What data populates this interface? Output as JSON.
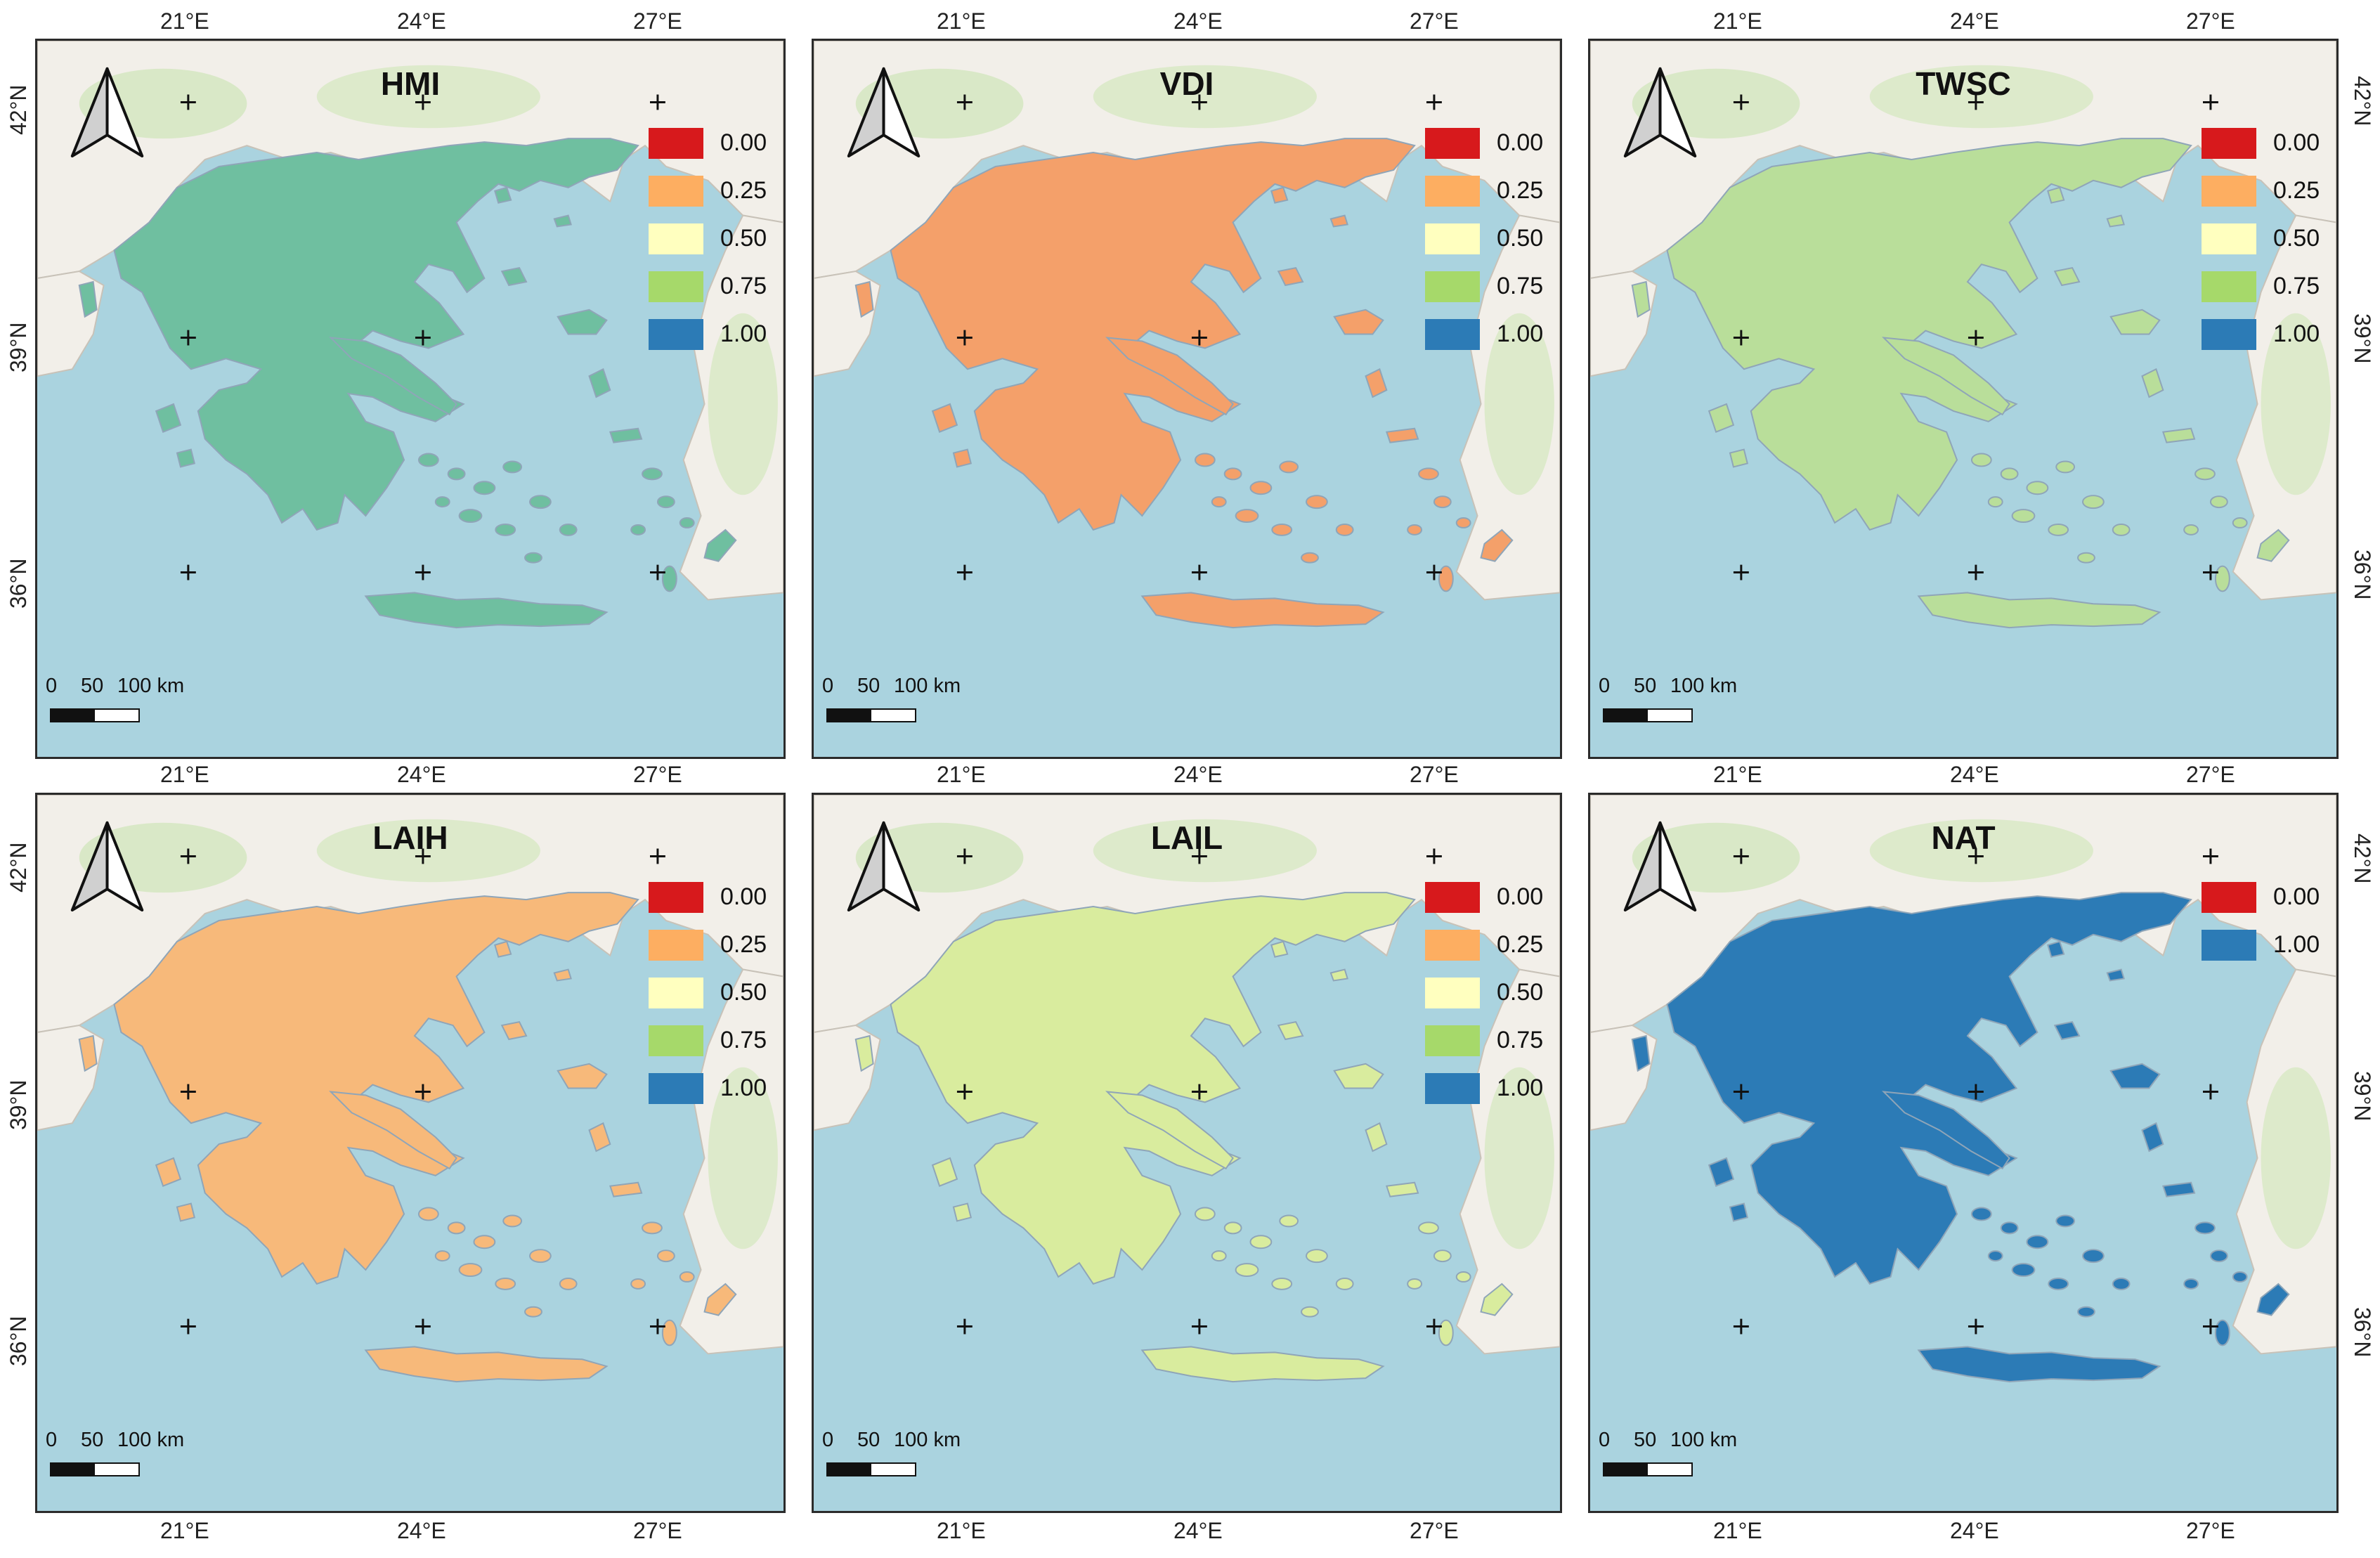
{
  "panels": [
    {
      "title": "HMI",
      "fill": "#6fbfa0",
      "legend": [
        {
          "label": "0.00",
          "color": "#d7191c"
        },
        {
          "label": "0.25",
          "color": "#fdae61"
        },
        {
          "label": "0.50",
          "color": "#ffffbf"
        },
        {
          "label": "0.75",
          "color": "#a6d96a"
        },
        {
          "label": "1.00",
          "color": "#2c7bb6"
        }
      ]
    },
    {
      "title": "VDI",
      "fill": "#f4a06a",
      "legend": [
        {
          "label": "0.00",
          "color": "#d7191c"
        },
        {
          "label": "0.25",
          "color": "#fdae61"
        },
        {
          "label": "0.50",
          "color": "#ffffbf"
        },
        {
          "label": "0.75",
          "color": "#a6d96a"
        },
        {
          "label": "1.00",
          "color": "#2c7bb6"
        }
      ]
    },
    {
      "title": "TWSC",
      "fill": "#b9de9a",
      "legend": [
        {
          "label": "0.00",
          "color": "#d7191c"
        },
        {
          "label": "0.25",
          "color": "#fdae61"
        },
        {
          "label": "0.50",
          "color": "#ffffbf"
        },
        {
          "label": "0.75",
          "color": "#a6d96a"
        },
        {
          "label": "1.00",
          "color": "#2c7bb6"
        }
      ]
    },
    {
      "title": "LAIH",
      "fill": "#f7b97a",
      "legend": [
        {
          "label": "0.00",
          "color": "#d7191c"
        },
        {
          "label": "0.25",
          "color": "#fdae61"
        },
        {
          "label": "0.50",
          "color": "#ffffbf"
        },
        {
          "label": "0.75",
          "color": "#a6d96a"
        },
        {
          "label": "1.00",
          "color": "#2c7bb6"
        }
      ]
    },
    {
      "title": "LAIL",
      "fill": "#d9ec9e",
      "legend": [
        {
          "label": "0.00",
          "color": "#d7191c"
        },
        {
          "label": "0.25",
          "color": "#fdae61"
        },
        {
          "label": "0.50",
          "color": "#ffffbf"
        },
        {
          "label": "0.75",
          "color": "#a6d96a"
        },
        {
          "label": "1.00",
          "color": "#2c7bb6"
        }
      ]
    },
    {
      "title": "NAT",
      "fill": "#2c7bb6",
      "legend": [
        {
          "label": "0.00",
          "color": "#d7191c"
        },
        {
          "label": "1.00",
          "color": "#2c7bb6"
        }
      ]
    }
  ],
  "axes": {
    "lon": [
      "21°E",
      "24°E",
      "27°E"
    ],
    "lat_left": [
      "42°N",
      "39°N",
      "36°N"
    ],
    "lat_right": [
      "42°N",
      "39°N",
      "36°N"
    ]
  },
  "scale": {
    "l0": "0",
    "l50": "50",
    "l100": "100 km"
  },
  "colors": {
    "sea": "#aad3df",
    "land": "#f2efe9"
  }
}
